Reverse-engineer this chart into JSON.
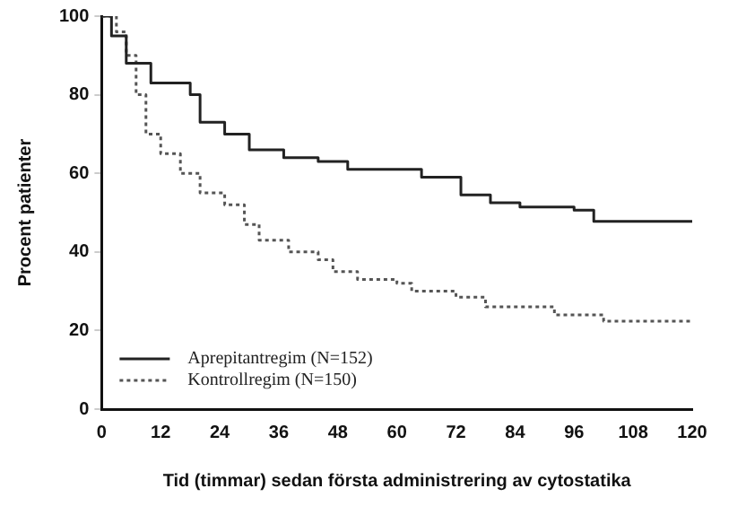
{
  "chart_data": {
    "type": "step",
    "xlabel": "Tid (timmar) sedan första administrering av cytostatika",
    "ylabel": "Procent patienter",
    "xlim": [
      0,
      120
    ],
    "xticks": [
      0,
      12,
      24,
      36,
      48,
      60,
      72,
      84,
      96,
      108,
      120
    ],
    "ylim": [
      0,
      100
    ],
    "yticks": [
      0,
      20,
      40,
      60,
      80,
      100
    ],
    "legend": "bottom left",
    "grid": false,
    "series": [
      {
        "name": "Aprepitantregim (N=152)",
        "color": "#222222",
        "line_style": "solid",
        "x": [
          0,
          2,
          5,
          10,
          18,
          20,
          25,
          30,
          37,
          44,
          50,
          65,
          73,
          79,
          85,
          96,
          100,
          120
        ],
        "values": [
          100,
          95,
          88,
          83,
          80,
          73,
          70,
          66,
          64,
          63,
          61,
          59,
          54.5,
          52.5,
          51.4,
          50.6,
          47.8,
          47.8
        ]
      },
      {
        "name": "Kontrollregim (N=150)",
        "color": "#555555",
        "line_style": "dotted",
        "x": [
          0,
          3,
          5,
          7,
          9,
          12,
          16,
          20,
          25,
          29,
          32,
          38,
          44,
          47,
          52,
          60,
          63,
          72,
          78,
          92,
          102,
          120
        ],
        "values": [
          100,
          96,
          90,
          80,
          70,
          65,
          60,
          55,
          52,
          47,
          43,
          40,
          38,
          35,
          33,
          32,
          30,
          28.5,
          26,
          24,
          22.4,
          22.4
        ]
      }
    ]
  }
}
